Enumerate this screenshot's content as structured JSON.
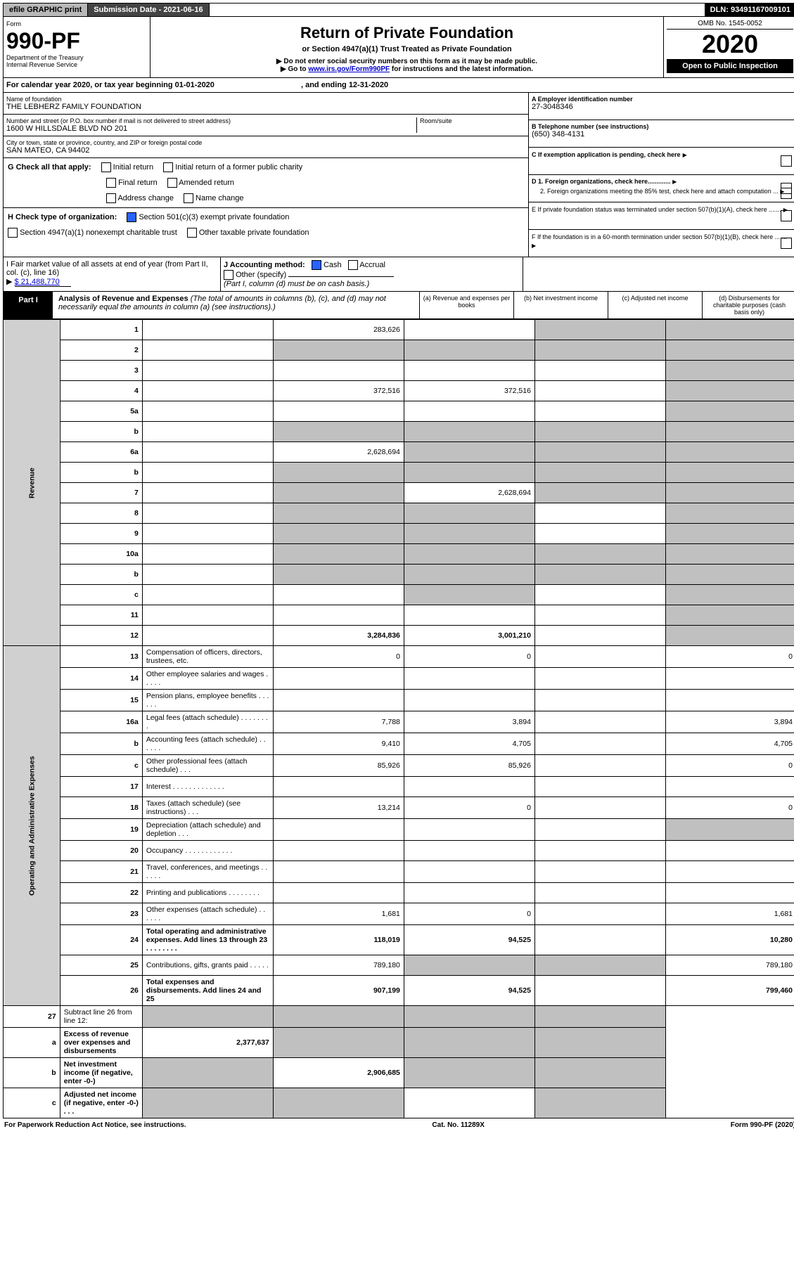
{
  "topbar": {
    "efile": "efile GRAPHIC print",
    "submission": "Submission Date - 2021-06-16",
    "dln": "DLN: 93491167009101"
  },
  "header": {
    "form_label": "Form",
    "form_number": "990-PF",
    "dept1": "Department of the Treasury",
    "dept2": "Internal Revenue Service",
    "title": "Return of Private Foundation",
    "subtitle": "or Section 4947(a)(1) Trust Treated as Private Foundation",
    "note1": "▶ Do not enter social security numbers on this form as it may be made public.",
    "note2_pre": "▶ Go to ",
    "note2_link": "www.irs.gov/Form990PF",
    "note2_post": " for instructions and the latest information.",
    "omb": "OMB No. 1545-0052",
    "year": "2020",
    "open": "Open to Public Inspection"
  },
  "calyear": {
    "pre": "For calendar year 2020, or tax year beginning 01-01-2020",
    "mid": ", and ending 12-31-2020"
  },
  "entity": {
    "name_lbl": "Name of foundation",
    "name": "THE LEBHERZ FAMILY FOUNDATION",
    "addr_lbl": "Number and street (or P.O. box number if mail is not delivered to street address)",
    "addr": "1600 W HILLSDALE BLVD NO 201",
    "room_lbl": "Room/suite",
    "city_lbl": "City or town, state or province, country, and ZIP or foreign postal code",
    "city": "SAN MATEO, CA  94402",
    "ein_lbl": "A Employer identification number",
    "ein": "27-3048346",
    "tel_lbl": "B Telephone number (see instructions)",
    "tel": "(650) 348-4131",
    "c_lbl": "C If exemption application is pending, check here",
    "d1": "D 1. Foreign organizations, check here.............",
    "d2": "2. Foreign organizations meeting the 85% test, check here and attach computation ...",
    "e": "E  If private foundation status was terminated under section 507(b)(1)(A), check here .......",
    "f": "F  If the foundation is in a 60-month termination under section 507(b)(1)(B), check here .......",
    "g_lbl": "G Check all that apply:",
    "g_opts": [
      "Initial return",
      "Initial return of a former public charity",
      "Final return",
      "Amended return",
      "Address change",
      "Name change"
    ],
    "h_lbl": "H Check type of organization:",
    "h_opts": [
      "Section 501(c)(3) exempt private foundation",
      "Section 4947(a)(1) nonexempt charitable trust",
      "Other taxable private foundation"
    ],
    "i_lbl": "I Fair market value of all assets at end of year (from Part II, col. (c), line 16)",
    "i_val": "$  21,488,770",
    "j_lbl": "J Accounting method:",
    "j_cash": "Cash",
    "j_accrual": "Accrual",
    "j_other": "Other (specify)",
    "j_note": "(Part I, column (d) must be on cash basis.)"
  },
  "part1": {
    "tag": "Part I",
    "title": "Analysis of Revenue and Expenses",
    "note": " (The total of amounts in columns (b), (c), and (d) may not necessarily equal the amounts in column (a) (see instructions).)",
    "colA": "(a)  Revenue and expenses per books",
    "colB": "(b)  Net investment income",
    "colC": "(c)  Adjusted net income",
    "colD": "(d)  Disbursements for charitable purposes (cash basis only)"
  },
  "sections": {
    "revenue": "Revenue",
    "expense": "Operating and Administrative Expenses"
  },
  "rows": [
    {
      "n": "1",
      "d": "",
      "a": "283,626",
      "b": "",
      "c": "",
      "grey": [
        "c",
        "d"
      ]
    },
    {
      "n": "2",
      "d": "",
      "a": "",
      "b": "",
      "c": "",
      "grey": [
        "a",
        "b",
        "c",
        "d"
      ]
    },
    {
      "n": "3",
      "d": "",
      "a": "",
      "b": "",
      "c": "",
      "grey": [
        "d"
      ]
    },
    {
      "n": "4",
      "d": "",
      "a": "372,516",
      "b": "372,516",
      "c": "",
      "grey": [
        "d"
      ]
    },
    {
      "n": "5a",
      "d": "",
      "a": "",
      "b": "",
      "c": "",
      "grey": [
        "d"
      ]
    },
    {
      "n": "b",
      "d": "",
      "a": "",
      "b": "",
      "c": "",
      "grey": [
        "a",
        "b",
        "c",
        "d"
      ],
      "inline": true
    },
    {
      "n": "6a",
      "d": "",
      "a": "2,628,694",
      "b": "",
      "c": "",
      "grey": [
        "b",
        "c",
        "d"
      ]
    },
    {
      "n": "b",
      "d": "",
      "a": "",
      "b": "",
      "c": "",
      "grey": [
        "a",
        "b",
        "c",
        "d"
      ]
    },
    {
      "n": "7",
      "d": "",
      "a": "",
      "b": "2,628,694",
      "c": "",
      "grey": [
        "a",
        "c",
        "d"
      ]
    },
    {
      "n": "8",
      "d": "",
      "a": "",
      "b": "",
      "c": "",
      "grey": [
        "a",
        "b",
        "d"
      ]
    },
    {
      "n": "9",
      "d": "",
      "a": "",
      "b": "",
      "c": "",
      "grey": [
        "a",
        "b",
        "d"
      ]
    },
    {
      "n": "10a",
      "d": "",
      "a": "",
      "b": "",
      "c": "",
      "grey": [
        "a",
        "b",
        "c",
        "d"
      ],
      "inline": true
    },
    {
      "n": "b",
      "d": "",
      "a": "",
      "b": "",
      "c": "",
      "grey": [
        "a",
        "b",
        "c",
        "d"
      ],
      "inline": true
    },
    {
      "n": "c",
      "d": "",
      "a": "",
      "b": "",
      "c": "",
      "grey": [
        "b",
        "d"
      ]
    },
    {
      "n": "11",
      "d": "",
      "a": "",
      "b": "",
      "c": "",
      "grey": [
        "d"
      ]
    },
    {
      "n": "12",
      "d": "",
      "a": "3,284,836",
      "b": "3,001,210",
      "c": "",
      "bold": true,
      "grey": [
        "d"
      ]
    }
  ],
  "exp_rows": [
    {
      "n": "13",
      "d": "0",
      "a": "0",
      "b": "0",
      "c": ""
    },
    {
      "n": "14",
      "d": "",
      "a": "",
      "b": "",
      "c": ""
    },
    {
      "n": "15",
      "d": "",
      "a": "",
      "b": "",
      "c": ""
    },
    {
      "n": "16a",
      "d": "3,894",
      "a": "7,788",
      "b": "3,894",
      "c": ""
    },
    {
      "n": "b",
      "d": "4,705",
      "a": "9,410",
      "b": "4,705",
      "c": ""
    },
    {
      "n": "c",
      "d": "0",
      "a": "85,926",
      "b": "85,926",
      "c": ""
    },
    {
      "n": "17",
      "d": "",
      "a": "",
      "b": "",
      "c": ""
    },
    {
      "n": "18",
      "d": "0",
      "a": "13,214",
      "b": "0",
      "c": ""
    },
    {
      "n": "19",
      "d": "",
      "a": "",
      "b": "",
      "c": "",
      "grey": [
        "d"
      ]
    },
    {
      "n": "20",
      "d": "",
      "a": "",
      "b": "",
      "c": ""
    },
    {
      "n": "21",
      "d": "",
      "a": "",
      "b": "",
      "c": ""
    },
    {
      "n": "22",
      "d": "",
      "a": "",
      "b": "",
      "c": ""
    },
    {
      "n": "23",
      "d": "1,681",
      "a": "1,681",
      "b": "0",
      "c": ""
    },
    {
      "n": "24",
      "d": "10,280",
      "a": "118,019",
      "b": "94,525",
      "c": "",
      "bold": true
    },
    {
      "n": "25",
      "d": "789,180",
      "a": "789,180",
      "b": "",
      "c": "",
      "grey": [
        "b",
        "c"
      ]
    },
    {
      "n": "26",
      "d": "799,460",
      "a": "907,199",
      "b": "94,525",
      "c": "",
      "bold": true
    }
  ],
  "net_rows": [
    {
      "n": "27",
      "d": "",
      "a": "",
      "b": "",
      "c": "",
      "grey": [
        "a",
        "b",
        "c",
        "d"
      ]
    },
    {
      "n": "a",
      "d": "",
      "a": "2,377,637",
      "b": "",
      "c": "",
      "bold": true,
      "grey": [
        "b",
        "c",
        "d"
      ]
    },
    {
      "n": "b",
      "d": "",
      "a": "",
      "b": "2,906,685",
      "c": "",
      "bold": true,
      "grey": [
        "a",
        "c",
        "d"
      ]
    },
    {
      "n": "c",
      "d": "",
      "a": "",
      "b": "",
      "c": "",
      "bold": true,
      "grey": [
        "a",
        "b",
        "d"
      ]
    }
  ],
  "footer": {
    "left": "For Paperwork Reduction Act Notice, see instructions.",
    "mid": "Cat. No. 11289X",
    "right": "Form 990-PF (2020)"
  },
  "colors": {
    "grey_cell": "#c0c0c0",
    "link": "#0000cc",
    "check_on": "#2962ff"
  }
}
